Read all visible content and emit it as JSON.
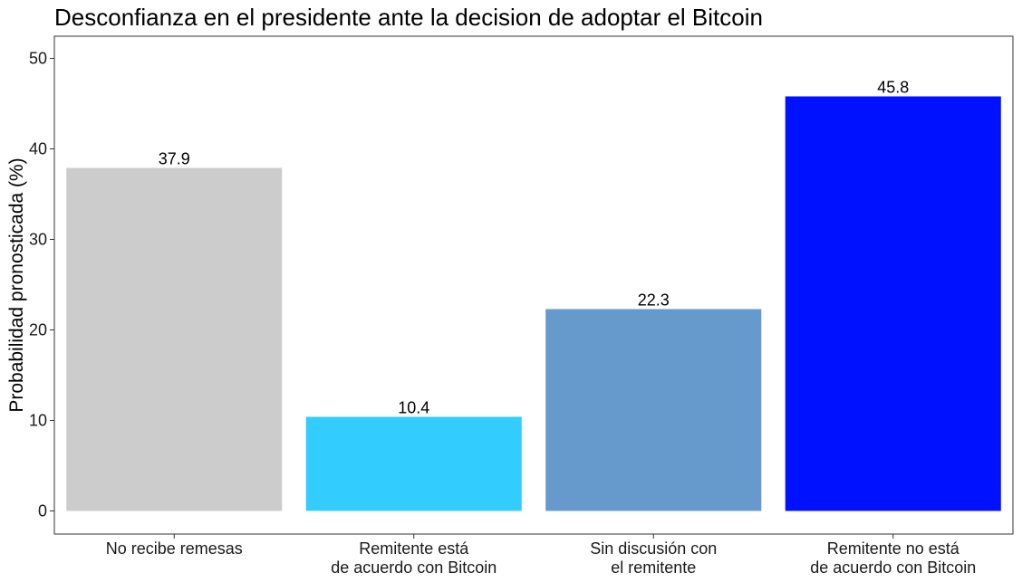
{
  "chart_data": {
    "type": "bar",
    "title": "Desconfianza en el presidente ante la decision de adoptar el Bitcoin",
    "xlabel": "",
    "ylabel": "Probabilidad pronosticada (%)",
    "ylim": [
      0,
      52
    ],
    "yticks": [
      0,
      10,
      20,
      30,
      40,
      50
    ],
    "categories": [
      "No recibe remesas",
      "Remitente está de acuerdo con Bitcoin",
      "Sin discusión con el remitente",
      "Remitente no está de acuerdo con Bitcoin"
    ],
    "category_lines": [
      [
        "No recibe remesas"
      ],
      [
        "Remitente está",
        "de acuerdo con Bitcoin"
      ],
      [
        "Sin discusión con",
        "el remitente"
      ],
      [
        "Remitente no está",
        "de acuerdo con Bitcoin"
      ]
    ],
    "values": [
      37.9,
      10.4,
      22.3,
      45.8
    ],
    "value_labels": [
      "37.9",
      "10.4",
      "22.3",
      "45.8"
    ],
    "colors": [
      "#cccccc",
      "#33ccff",
      "#6699cc",
      "#0011ff"
    ],
    "grid": false,
    "legend": "none"
  }
}
